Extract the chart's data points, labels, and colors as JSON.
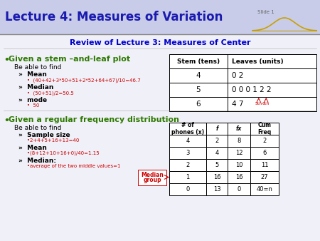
{
  "title": "Lecture 4: Measures of Variation",
  "subtitle": "Review of Lecture 3: Measures of Center",
  "title_color": "#1a1ab0",
  "subtitle_color": "#0000cc",
  "bg_color": "#f0f0f8",
  "title_bg": "#c8cce8",
  "bullet1_header": "Given a stem –and-leaf plot",
  "bullet2_header": "Given a regular frequency distribution",
  "green_color": "#2d7a00",
  "formula_color": "#cc0000",
  "black": "#000000",
  "stem_table": {
    "headers": [
      "Stem (tens)",
      "Leaves (units)"
    ],
    "rows": [
      [
        "4",
        "0 2"
      ],
      [
        "5",
        "0 0 0 1 2 2"
      ],
      [
        "6",
        "4 7"
      ]
    ]
  },
  "freq_table": {
    "headers": [
      "# of\nphones (x)",
      "f",
      "fx",
      "Cum\nFreq"
    ],
    "rows": [
      [
        "4",
        "2",
        "8",
        "2"
      ],
      [
        "3",
        "4",
        "12",
        "6"
      ],
      [
        "2",
        "5",
        "10",
        "11"
      ],
      [
        "1",
        "16",
        "16",
        "27"
      ],
      [
        "0",
        "13",
        "0",
        "40=n"
      ]
    ],
    "median_row": 3
  }
}
